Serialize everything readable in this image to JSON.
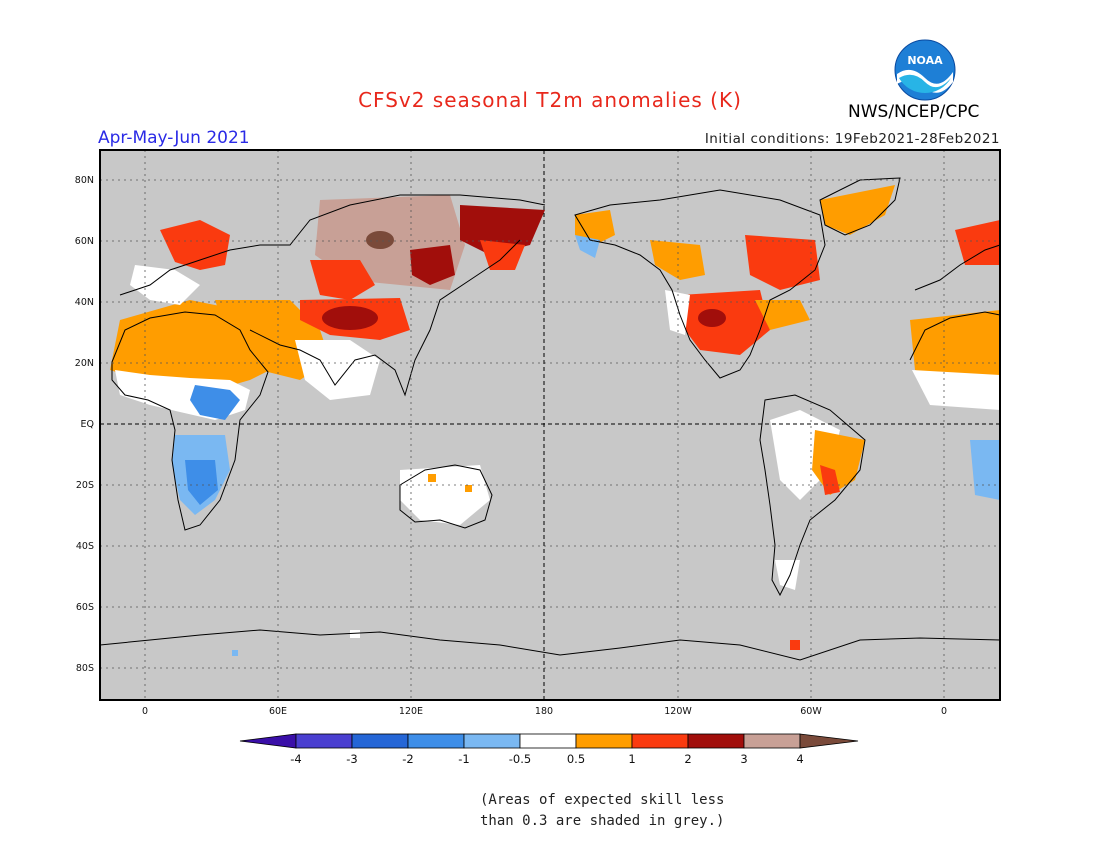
{
  "header": {
    "title": "CFSv2 seasonal T2m anomalies (K)",
    "season": "Apr-May-Jun 2021",
    "initial_conditions": "Initial conditions: 19Feb2021-28Feb2021",
    "agency": "NWS/NCEP/CPC",
    "logo_text": "NOAA"
  },
  "map": {
    "lat_labels": [
      "80N",
      "60N",
      "40N",
      "20N",
      "EQ",
      "20S",
      "40S",
      "60S",
      "80S"
    ],
    "lon_labels": [
      "0",
      "60E",
      "120E",
      "180",
      "120W",
      "60W",
      "0"
    ]
  },
  "colorbar": {
    "labels": [
      "-4",
      "-3",
      "-2",
      "-1",
      "-0.5",
      "0.5",
      "1",
      "2",
      "3",
      "4"
    ],
    "colors": [
      "#3a0fa8",
      "#4a3fd0",
      "#2566d6",
      "#3e8ee8",
      "#7ab8f2",
      "#ffffff",
      "#ff9d00",
      "#fa3a0f",
      "#a10e0b",
      "#c8a096",
      "#7a4a3a"
    ]
  },
  "legend_note": {
    "line1": "(Areas of expected skill less",
    "line2": "than 0.3 are shaded in grey.)"
  },
  "colors": {
    "no_skill": "#c8c8c8",
    "title": "#e8281c",
    "season": "#2a2ae6"
  }
}
